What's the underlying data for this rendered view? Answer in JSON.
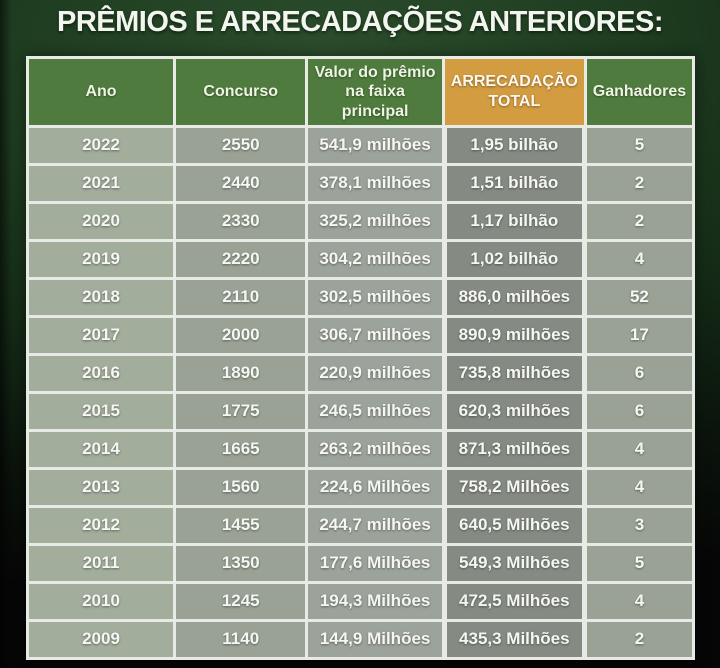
{
  "title": "PRÊMIOS E ARRECADAÇÕES ANTERIORES:",
  "table": {
    "columns": [
      {
        "key": "ano",
        "label": "Ano"
      },
      {
        "key": "concurso",
        "label": "Concurso"
      },
      {
        "key": "valor",
        "label": "Valor do prêmio na faixa principal"
      },
      {
        "key": "arrecadacao",
        "label": "ARRECADAÇÃO TOTAL"
      },
      {
        "key": "ganhadores",
        "label": "Ganhadores"
      }
    ],
    "rows": [
      [
        "2022",
        "2550",
        "541,9 milhões",
        "1,95 bilhão",
        "5"
      ],
      [
        "2021",
        "2440",
        "378,1 milhões",
        "1,51 bilhão",
        "2"
      ],
      [
        "2020",
        "2330",
        "325,2 milhões",
        "1,17 bilhão",
        "2"
      ],
      [
        "2019",
        "2220",
        "304,2 milhões",
        "1,02 bilhão",
        "4"
      ],
      [
        "2018",
        "2110",
        "302,5 milhões",
        "886,0 milhões",
        "52"
      ],
      [
        "2017",
        "2000",
        "306,7 milhões",
        "890,9 milhões",
        "17"
      ],
      [
        "2016",
        "1890",
        "220,9 milhões",
        "735,8 milhões",
        "6"
      ],
      [
        "2015",
        "1775",
        "246,5 milhões",
        "620,3 milhões",
        "6"
      ],
      [
        "2014",
        "1665",
        "263,2 milhões",
        "871,3 milhões",
        "4"
      ],
      [
        "2013",
        "1560",
        "224,6 Milhões",
        "758,2 Milhões",
        "4"
      ],
      [
        "2012",
        "1455",
        "244,7 milhões",
        "640,5 Milhões",
        "3"
      ],
      [
        "2011",
        "1350",
        "177,6 Milhões",
        "549,3 Milhões",
        "5"
      ],
      [
        "2010",
        "1245",
        "194,3 Milhões",
        "472,5 Milhões",
        "4"
      ],
      [
        "2009",
        "1140",
        "144,9 Milhões",
        "435,3 Milhões",
        "2"
      ]
    ]
  },
  "colors": {
    "background_green": "#1e3c20",
    "header_green": "#4f7c3e",
    "header_orange": "#d39c40",
    "cell_light": "#a3ad9c",
    "cell_medium": "#99a294",
    "cell_dark": "#858b83",
    "border_white": "#e8ebe5",
    "text": "#f5f7f2"
  }
}
